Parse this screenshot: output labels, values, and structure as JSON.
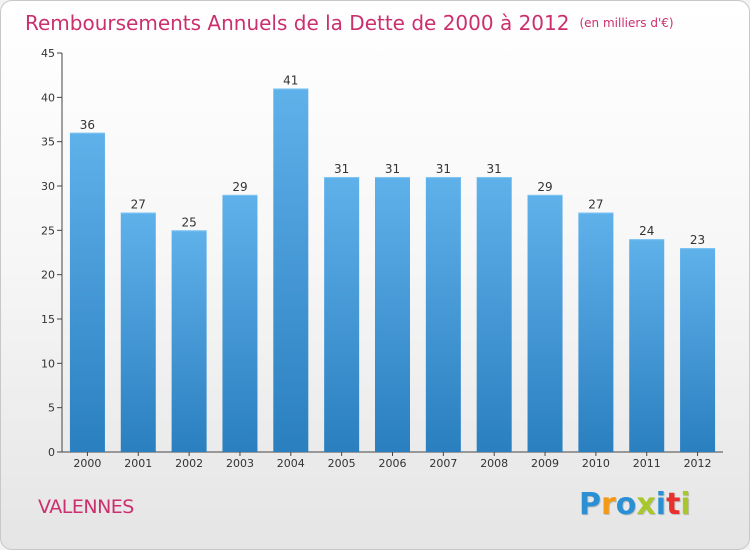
{
  "page": {
    "title": "Remboursements Annuels de la Dette de 2000 à 2012",
    "unit": "(en milliers d'€)",
    "town": "VALENNES",
    "logo": {
      "letters": [
        "P",
        "r",
        "o",
        "x",
        "i",
        "t",
        "i"
      ],
      "colors": [
        "#2b8fd3",
        "#f39b17",
        "#2b8fd3",
        "#a8c72a",
        "#2b8fd3",
        "#e8302f",
        "#a8c72a"
      ]
    }
  },
  "colors": {
    "bar_dark": "#2a7fbf",
    "bar_light": "#5fb1ea",
    "title": "#cc2f6d",
    "axis": "#444444",
    "grid": "#d9d9d9"
  },
  "chart_data": {
    "type": "bar",
    "title": "Remboursements Annuels de la Dette de 2000 à 2012",
    "subtitle": "(en milliers d'€)",
    "xlabel": "",
    "ylabel": "",
    "categories": [
      "2000",
      "2001",
      "2002",
      "2003",
      "2004",
      "2005",
      "2006",
      "2007",
      "2008",
      "2009",
      "2010",
      "2011",
      "2012"
    ],
    "values": [
      36,
      27,
      25,
      29,
      41,
      31,
      31,
      31,
      31,
      29,
      27,
      24,
      23
    ],
    "ylim": [
      0,
      45
    ],
    "yticks": [
      0,
      5,
      10,
      15,
      20,
      25,
      30,
      35,
      40,
      45
    ],
    "grid": "y-axis ticks only",
    "legend": "none"
  }
}
